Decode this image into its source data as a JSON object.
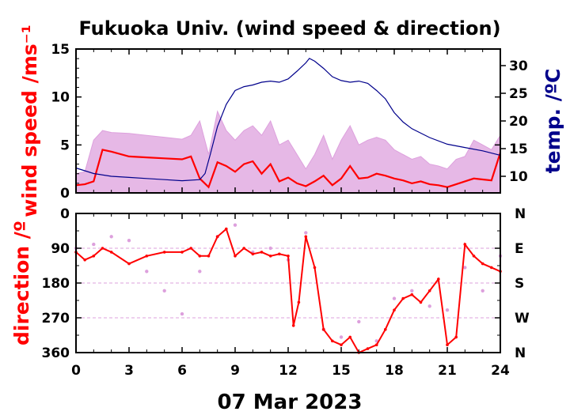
{
  "chart_data": [
    {
      "type": "line",
      "title": "Fukuoka Univ. (wind speed & direction)",
      "ylabel": "wind speed /ms⁻¹",
      "y2label": "temp. /ºC",
      "xlim": [
        0,
        24
      ],
      "ylim": [
        0,
        15
      ],
      "y2lim": [
        7,
        33
      ],
      "xticks": [
        "0",
        "3",
        "6",
        "9",
        "12",
        "15",
        "18",
        "21",
        "24"
      ],
      "yticks": [
        "0",
        "5",
        "10",
        "15"
      ],
      "y2ticks": [
        "10",
        "15",
        "20",
        "25",
        "30"
      ],
      "series": [
        {
          "color": "#ff0000",
          "x": [
            0,
            0.5,
            1,
            1.5,
            2,
            3,
            4,
            5,
            6,
            6.5,
            7,
            7.5,
            8,
            8.5,
            9,
            9.5,
            10,
            10.5,
            11,
            11.5,
            12,
            12.5,
            13,
            13.5,
            14,
            14.5,
            15,
            15.5,
            16,
            16.5,
            17,
            17.5,
            18,
            18.5,
            19,
            19.5,
            20,
            20.5,
            21,
            21.5,
            22,
            22.5,
            23,
            23.5,
            24
          ],
          "values": [
            0.8,
            0.9,
            1.2,
            4.5,
            4.3,
            3.8,
            3.7,
            3.6,
            3.5,
            3.8,
            1.5,
            0.6,
            3.2,
            2.8,
            2.2,
            3.0,
            3.3,
            2.0,
            3.0,
            1.2,
            1.6,
            1.0,
            0.7,
            1.2,
            1.8,
            0.8,
            1.5,
            2.8,
            1.5,
            1.6,
            2.0,
            1.8,
            1.5,
            1.3,
            1.0,
            1.2,
            0.9,
            0.8,
            0.6,
            0.9,
            1.2,
            1.5,
            1.4,
            1.3,
            4.2
          ]
        },
        {
          "color": "#dda0dd",
          "x": [
            0,
            0.5,
            1,
            1.5,
            2,
            3,
            4,
            5,
            6,
            6.5,
            7,
            7.5,
            8,
            8.5,
            9,
            9.5,
            10,
            10.5,
            11,
            11.5,
            12,
            12.5,
            13,
            13.5,
            14,
            14.5,
            15,
            15.5,
            16,
            16.5,
            17,
            17.5,
            18,
            18.5,
            19,
            19.5,
            20,
            20.5,
            21,
            21.5,
            22,
            22.5,
            23,
            23.5,
            24
          ],
          "values": [
            2.0,
            2.2,
            5.5,
            6.5,
            6.3,
            6.2,
            6.0,
            5.8,
            5.6,
            6.0,
            7.5,
            4.0,
            8.5,
            6.5,
            5.5,
            6.5,
            7.0,
            6.0,
            7.5,
            5.0,
            5.5,
            4.0,
            2.5,
            4.0,
            6.0,
            3.5,
            5.5,
            7.0,
            5.0,
            5.5,
            5.8,
            5.5,
            4.5,
            4.0,
            3.5,
            3.8,
            3.0,
            2.8,
            2.5,
            3.5,
            3.8,
            5.5,
            5.0,
            4.5,
            6.0
          ]
        },
        {
          "axis": "right",
          "color": "#00008b",
          "x": [
            0,
            1,
            2,
            3,
            4,
            5,
            6,
            7,
            7.3,
            7.6,
            8,
            8.5,
            9,
            9.5,
            10,
            10.5,
            11,
            11.5,
            12,
            12.5,
            13,
            13.2,
            13.5,
            14,
            14.5,
            15,
            15.5,
            16,
            16.5,
            17,
            17.5,
            18,
            18.5,
            19,
            19.5,
            20,
            21,
            22,
            23,
            24
          ],
          "values": [
            11.5,
            10.5,
            10.0,
            9.8,
            9.6,
            9.4,
            9.2,
            9.4,
            10.5,
            14.0,
            19.0,
            23.0,
            25.5,
            26.2,
            26.5,
            27.0,
            27.2,
            27.0,
            27.6,
            29.0,
            30.5,
            31.3,
            30.8,
            29.5,
            28.0,
            27.3,
            27.0,
            27.2,
            26.8,
            25.5,
            24.0,
            21.5,
            19.8,
            18.6,
            17.8,
            17.0,
            15.8,
            15.2,
            14.6,
            13.8
          ]
        }
      ]
    },
    {
      "type": "scatter",
      "ylabel": "direction /º",
      "xlabel": "07 Mar 2023",
      "xlim": [
        0,
        24
      ],
      "ylim": [
        360,
        0
      ],
      "xticks": [
        "0",
        "3",
        "6",
        "9",
        "12",
        "15",
        "18",
        "21",
        "24"
      ],
      "yticks": [
        "0",
        "90",
        "180",
        "270",
        "360"
      ],
      "y2ticks": [
        "N",
        "E",
        "S",
        "W",
        "N"
      ],
      "series": [
        {
          "color": "#ff0000",
          "x": [
            0,
            0.5,
            1,
            1.5,
            2,
            3,
            4,
            5,
            6,
            6.5,
            7,
            7.5,
            8,
            8.5,
            9,
            9.5,
            10,
            10.5,
            11,
            11.5,
            12,
            12.3,
            12.6,
            13,
            13.5,
            14,
            14.5,
            15,
            15.5,
            16,
            16.5,
            17,
            17.5,
            18,
            18.5,
            19,
            19.5,
            20,
            20.5,
            21,
            21.5,
            22,
            22.5,
            23,
            23.5,
            24
          ],
          "values": [
            100,
            120,
            110,
            90,
            100,
            130,
            110,
            100,
            100,
            90,
            110,
            110,
            60,
            40,
            110,
            90,
            105,
            100,
            110,
            105,
            110,
            290,
            230,
            60,
            140,
            300,
            330,
            340,
            320,
            360,
            350,
            340,
            300,
            250,
            220,
            210,
            230,
            200,
            170,
            340,
            320,
            80,
            110,
            130,
            140,
            150
          ]
        },
        {
          "color": "#dda0dd",
          "x": [
            0,
            1,
            2,
            3,
            4,
            5,
            6,
            7,
            8,
            9,
            10,
            11,
            12,
            13,
            14,
            15,
            16,
            17,
            18,
            19,
            20,
            21,
            22,
            23,
            24
          ],
          "values": [
            90,
            80,
            60,
            70,
            150,
            200,
            260,
            150,
            60,
            30,
            100,
            90,
            120,
            50,
            300,
            320,
            280,
            330,
            220,
            200,
            240,
            250,
            140,
            200,
            110
          ]
        }
      ]
    }
  ]
}
